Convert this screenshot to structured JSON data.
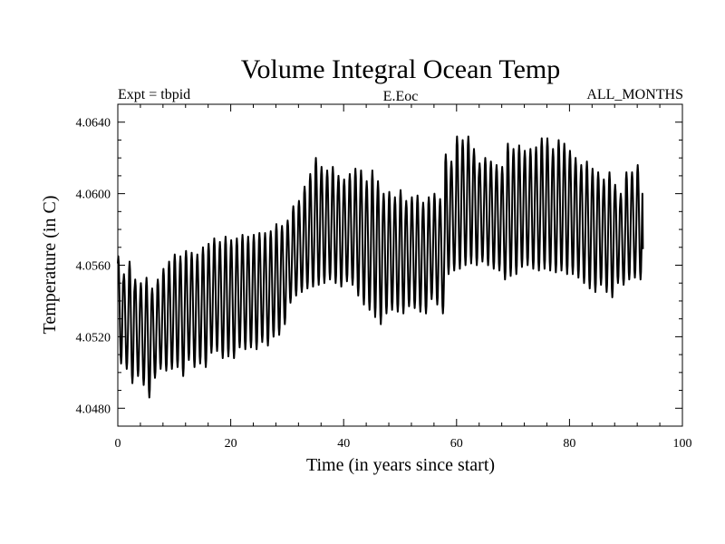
{
  "chart_data": {
    "type": "line",
    "title": "Volume Integral Ocean Temp",
    "subtitle_left": "Expt = tbpid",
    "subtitle_center": "E.Eoc",
    "subtitle_right": "ALL_MONTHS",
    "xlabel": "Time (in years since start)",
    "ylabel": "Temperature (in C)",
    "xlim": [
      0,
      100
    ],
    "ylim": [
      4.047,
      4.065
    ],
    "x_ticks": [
      0,
      20,
      40,
      60,
      80,
      100
    ],
    "x_tick_labels": [
      "0",
      "20",
      "40",
      "60",
      "80",
      "100"
    ],
    "y_ticks": [
      4.048,
      4.052,
      4.056,
      4.06,
      4.064
    ],
    "y_tick_labels": [
      "4.0480",
      "4.0520",
      "4.0560",
      "4.0600",
      "4.0640"
    ],
    "grid": false,
    "series": [
      {
        "name": "Volume Integral Ocean Temp",
        "note": "monthly values with annual cycle; per-year maxima and minima read from plot",
        "years": [
          0,
          1,
          2,
          3,
          4,
          5,
          6,
          7,
          8,
          9,
          10,
          11,
          12,
          13,
          14,
          15,
          16,
          17,
          18,
          19,
          20,
          21,
          22,
          23,
          24,
          25,
          26,
          27,
          28,
          29,
          30,
          31,
          32,
          33,
          34,
          35,
          36,
          37,
          38,
          39,
          40,
          41,
          42,
          43,
          44,
          45,
          46,
          47,
          48,
          49,
          50,
          51,
          52,
          53,
          54,
          55,
          56,
          57,
          58,
          59,
          60,
          61,
          62,
          63,
          64,
          65,
          66,
          67,
          68,
          69,
          70,
          71,
          72,
          73,
          74,
          75,
          76,
          77,
          78,
          79,
          80,
          81,
          82,
          83,
          84,
          85,
          86,
          87,
          88,
          89,
          90,
          91,
          92
        ],
        "annual_max": [
          4.0565,
          4.0555,
          4.0562,
          4.0552,
          4.055,
          4.0553,
          4.0547,
          4.0552,
          4.0558,
          4.0562,
          4.0566,
          4.0565,
          4.0568,
          4.0567,
          4.0566,
          4.057,
          4.0572,
          4.0575,
          4.0573,
          4.0576,
          4.0574,
          4.0575,
          4.0577,
          4.0576,
          4.0577,
          4.0578,
          4.0578,
          4.0579,
          4.0583,
          4.0582,
          4.0585,
          4.0593,
          4.0596,
          4.0604,
          4.0611,
          4.062,
          4.0615,
          4.0613,
          4.0615,
          4.061,
          4.0608,
          4.0611,
          4.0614,
          4.0613,
          4.0607,
          4.0613,
          4.0607,
          4.06,
          4.0601,
          4.0598,
          4.0602,
          4.0596,
          4.0598,
          4.0599,
          4.0595,
          4.0598,
          4.06,
          4.0597,
          4.0622,
          4.0618,
          4.0632,
          4.063,
          4.0632,
          4.0625,
          4.0617,
          4.062,
          4.0618,
          4.0616,
          4.0615,
          4.0628,
          4.0625,
          4.0627,
          4.0624,
          4.0625,
          4.0626,
          4.0631,
          4.0631,
          4.0625,
          4.063,
          4.0628,
          4.0624,
          4.062,
          4.0616,
          4.0618,
          4.0614,
          4.0612,
          4.0608,
          4.0612,
          4.0605,
          4.06,
          4.0612,
          4.0612,
          4.0616
        ],
        "annual_min": [
          4.0505,
          4.0502,
          4.0494,
          4.0498,
          4.0493,
          4.0486,
          4.0497,
          4.0502,
          4.0501,
          4.0502,
          4.0503,
          4.0498,
          4.0507,
          4.0503,
          4.0505,
          4.0503,
          4.0511,
          4.0512,
          4.0508,
          4.0509,
          4.0508,
          4.0514,
          4.0513,
          4.0514,
          4.0513,
          4.0517,
          4.0515,
          4.052,
          4.0521,
          4.0527,
          4.0539,
          4.0543,
          4.0545,
          4.0547,
          4.0548,
          4.0549,
          4.055,
          4.0552,
          4.055,
          4.0548,
          4.0551,
          4.0549,
          4.0543,
          4.0538,
          4.0535,
          4.0531,
          4.0527,
          4.0533,
          4.0535,
          4.0534,
          4.0533,
          4.0537,
          4.0536,
          4.0534,
          4.0533,
          4.0541,
          4.0538,
          4.0533,
          4.0555,
          4.0557,
          4.0558,
          4.056,
          4.0561,
          4.056,
          4.0562,
          4.056,
          4.0558,
          4.0557,
          4.0552,
          4.0554,
          4.0555,
          4.0559,
          4.056,
          4.0558,
          4.0557,
          4.0558,
          4.0557,
          4.0556,
          4.0557,
          4.0555,
          4.0555,
          4.0553,
          4.055,
          4.0547,
          4.0545,
          4.0549,
          4.0545,
          4.0542,
          4.055,
          4.0549,
          4.0552,
          4.0553,
          4.0552
        ],
        "last_value": 4.0569
      }
    ]
  }
}
